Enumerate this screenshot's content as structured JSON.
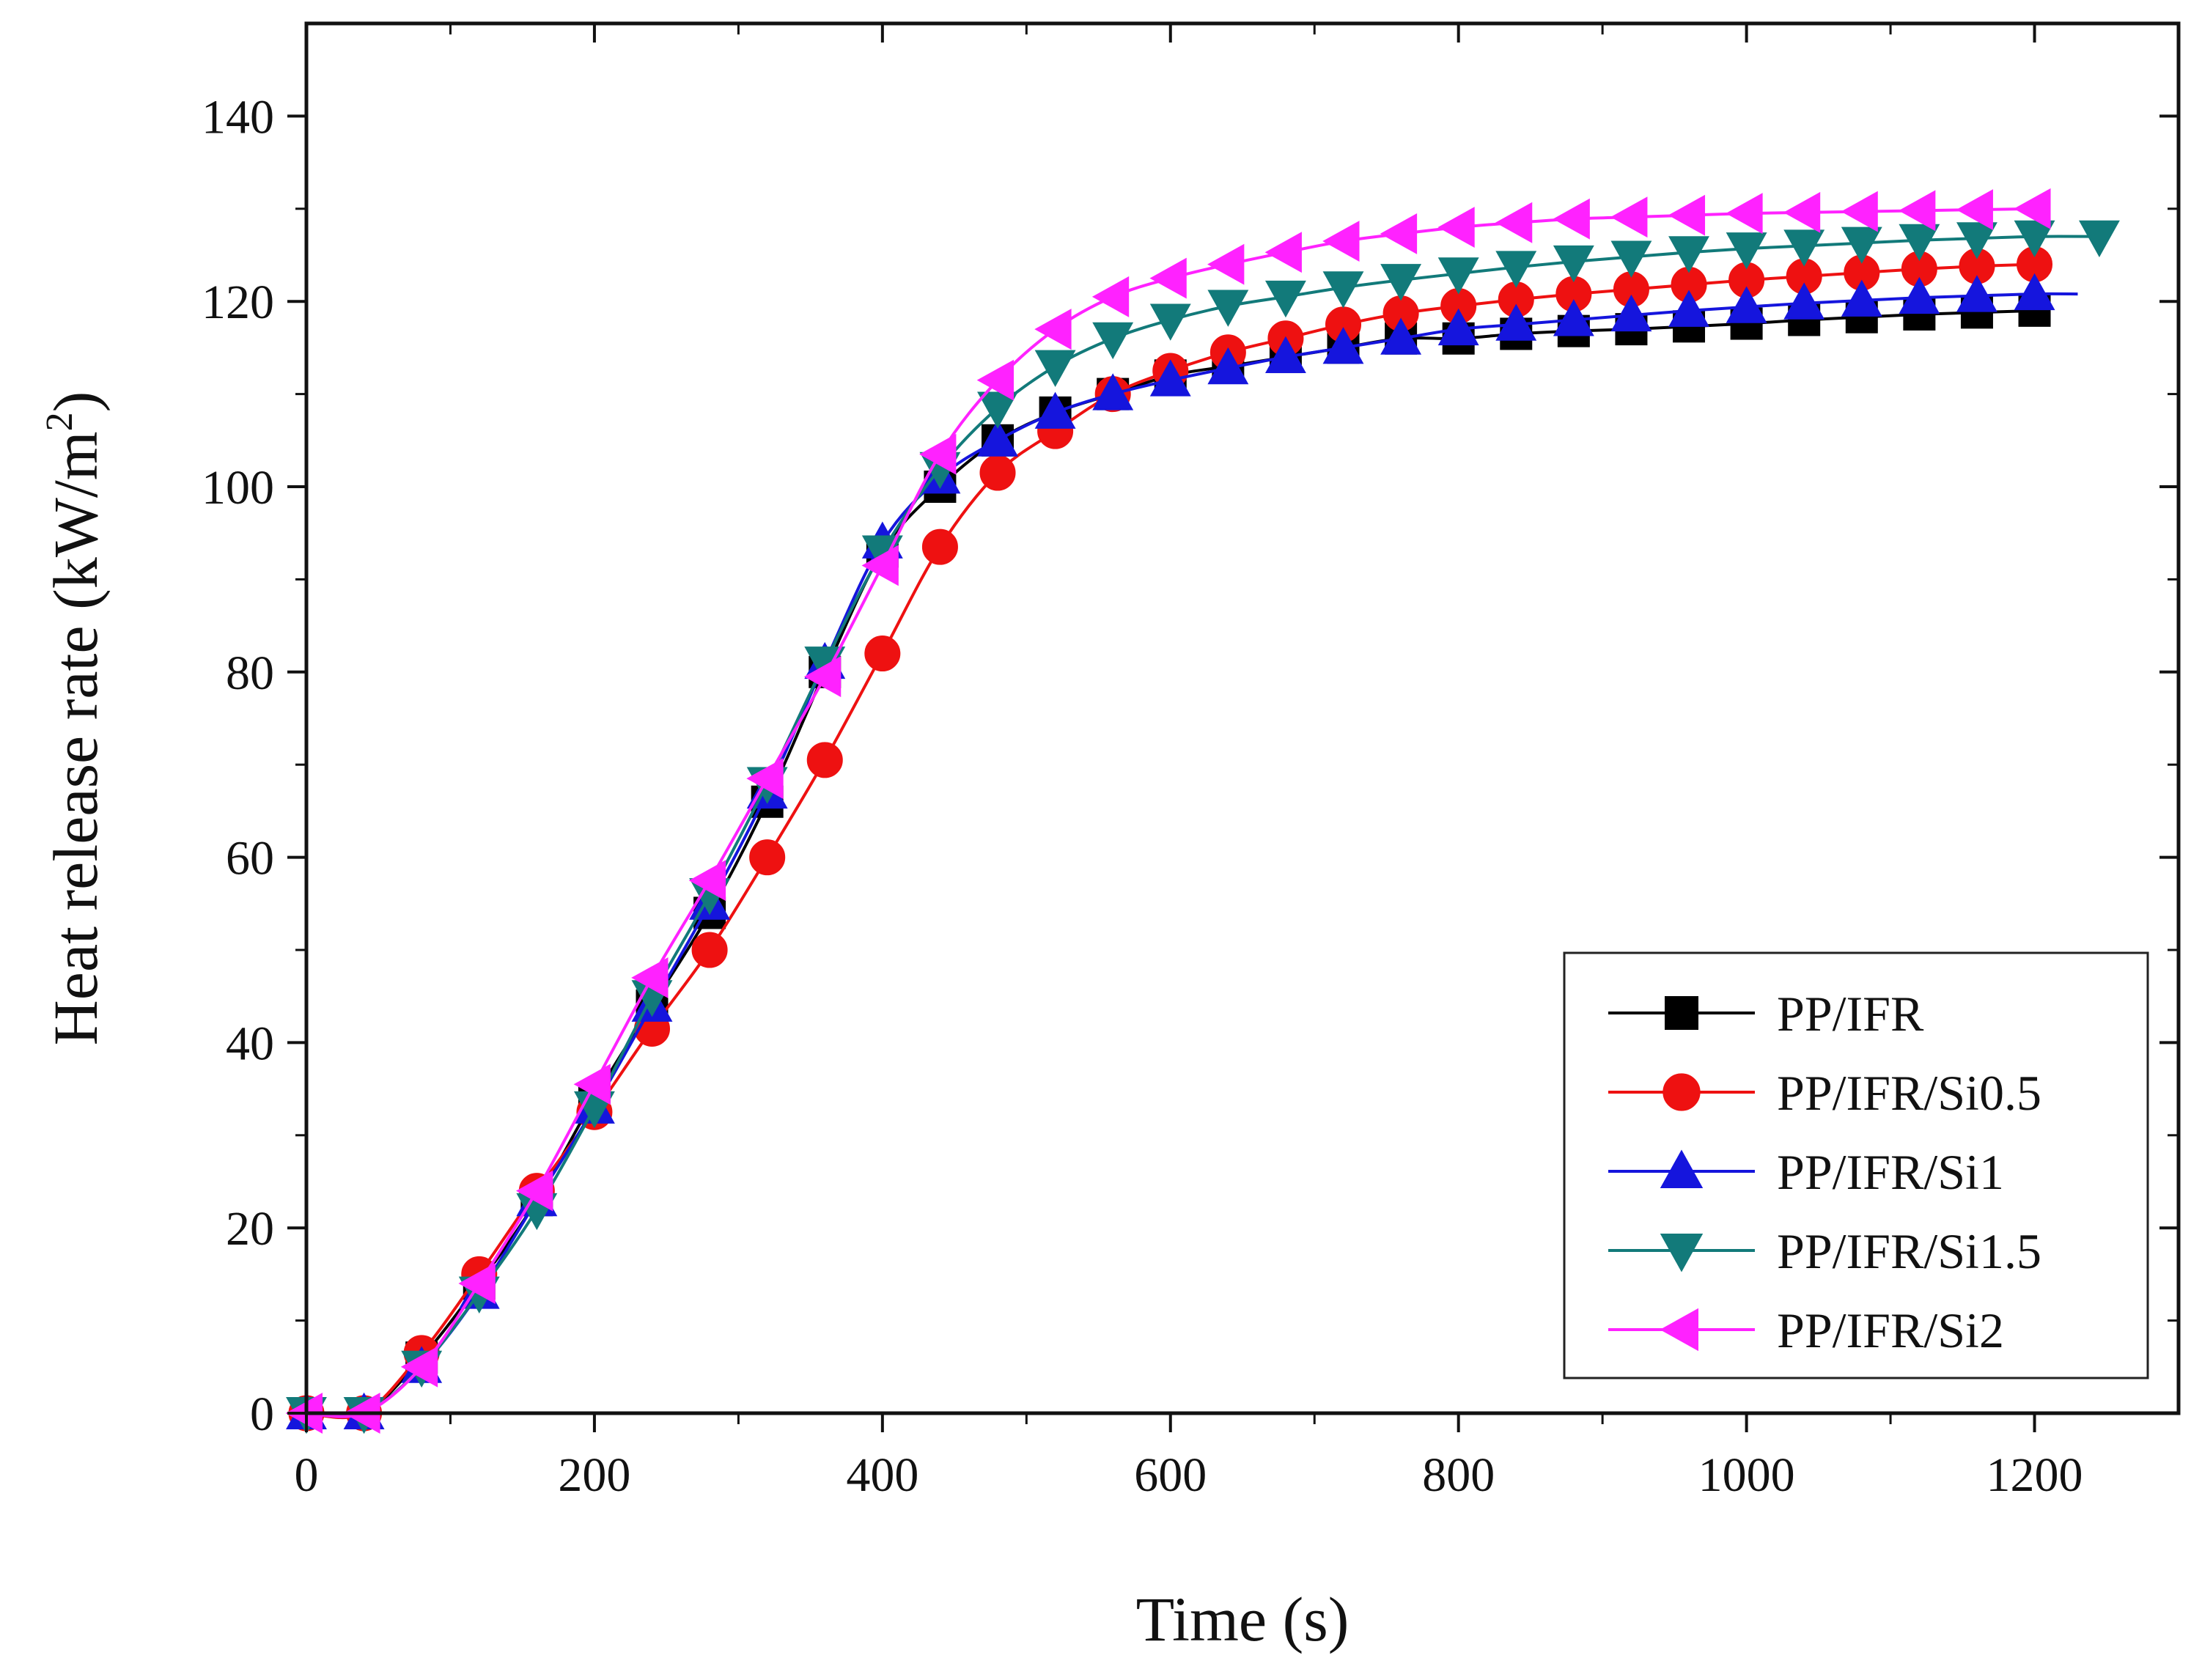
{
  "chart_data": {
    "type": "line",
    "title": "",
    "xlabel": "Time (s)",
    "ylabel_main": "Heat release rate (kW/m",
    "ylabel_sup": "2",
    "ylabel_close": ")",
    "xlim": [
      0,
      1300
    ],
    "ylim": [
      0,
      150
    ],
    "xticks": [
      0,
      200,
      400,
      600,
      800,
      1000,
      1200
    ],
    "yticks": [
      0,
      20,
      40,
      60,
      80,
      100,
      120,
      140
    ],
    "xtick_labels": [
      "0",
      "200",
      "400",
      "600",
      "800",
      "1000",
      "1200"
    ],
    "ytick_labels": [
      "0",
      "20",
      "40",
      "60",
      "80",
      "100",
      "120",
      "140"
    ],
    "grid": false,
    "legend_position": "bottom-right",
    "series": [
      {
        "name": "PP/IFR",
        "color": "#000000",
        "marker": "square",
        "line_end": 1200,
        "x": [
          0,
          40,
          80,
          120,
          160,
          200,
          240,
          280,
          320,
          360,
          400,
          440,
          480,
          520,
          560,
          600,
          640,
          680,
          720,
          760,
          800,
          840,
          880,
          920,
          960,
          1000,
          1040,
          1080,
          1120,
          1160,
          1200
        ],
        "y": [
          0,
          0,
          6,
          14,
          23,
          34,
          44,
          54,
          66,
          80,
          93,
          100,
          105,
          108,
          110,
          112,
          113,
          114,
          115,
          116,
          116,
          116.5,
          116.8,
          117,
          117.3,
          117.6,
          118,
          118.3,
          118.6,
          118.8,
          119
        ]
      },
      {
        "name": "PP/IFR/Si0.5",
        "color": "#ee1111",
        "marker": "circle",
        "line_end": 1200,
        "x": [
          0,
          40,
          80,
          120,
          160,
          200,
          240,
          280,
          320,
          360,
          400,
          440,
          480,
          520,
          560,
          600,
          640,
          680,
          720,
          760,
          800,
          840,
          880,
          920,
          960,
          1000,
          1040,
          1080,
          1120,
          1160,
          1200
        ],
        "y": [
          0,
          0,
          6.5,
          15,
          24,
          32.5,
          41.5,
          50,
          60,
          70.5,
          82,
          93.5,
          101.5,
          106,
          110,
          112.5,
          114.5,
          116,
          117.5,
          118.7,
          119.5,
          120.2,
          120.8,
          121.3,
          121.8,
          122.3,
          122.7,
          123.1,
          123.5,
          123.8,
          124
        ]
      },
      {
        "name": "PP/IFR/Si1",
        "color": "#1515dd",
        "marker": "triangle-up",
        "line_end": 1230,
        "x": [
          0,
          40,
          80,
          120,
          160,
          200,
          240,
          280,
          320,
          360,
          400,
          440,
          480,
          520,
          560,
          600,
          640,
          680,
          720,
          760,
          800,
          840,
          880,
          920,
          960,
          1000,
          1040,
          1080,
          1120,
          1160,
          1200
        ],
        "y": [
          0,
          0,
          5,
          13,
          23,
          33,
          44,
          55,
          67,
          81,
          94,
          101,
          105,
          108,
          110,
          111.5,
          112.8,
          114,
          115,
          116,
          117,
          117.5,
          118,
          118.5,
          119,
          119.4,
          119.8,
          120.1,
          120.4,
          120.6,
          120.8
        ]
      },
      {
        "name": "PP/IFR/Si1.5",
        "color": "#127a7a",
        "marker": "triangle-down",
        "line_end": 1245,
        "x": [
          0,
          40,
          80,
          120,
          160,
          200,
          240,
          280,
          320,
          360,
          400,
          440,
          480,
          520,
          560,
          600,
          640,
          680,
          720,
          760,
          800,
          840,
          880,
          920,
          960,
          1000,
          1040,
          1080,
          1120,
          1160,
          1200,
          1245
        ],
        "y": [
          0,
          0,
          5,
          13,
          22,
          33,
          45,
          56,
          68,
          81,
          93,
          102,
          108.5,
          113,
          116,
          118,
          119.5,
          120.5,
          121.5,
          122.3,
          123,
          123.7,
          124.3,
          124.8,
          125.3,
          125.7,
          126,
          126.3,
          126.6,
          126.8,
          127,
          127
        ]
      },
      {
        "name": "PP/IFR/Si2",
        "color": "#ff22ff",
        "marker": "triangle-left",
        "line_end": 1200,
        "x": [
          0,
          40,
          80,
          120,
          160,
          200,
          240,
          280,
          320,
          360,
          400,
          440,
          480,
          520,
          560,
          600,
          640,
          680,
          720,
          760,
          800,
          840,
          880,
          920,
          960,
          1000,
          1040,
          1080,
          1120,
          1160,
          1200
        ],
        "y": [
          0,
          0,
          5,
          14,
          24,
          35.5,
          47,
          57.5,
          68.5,
          79.5,
          91.5,
          103.5,
          111.5,
          117,
          120.5,
          122.5,
          124,
          125.3,
          126.5,
          127.3,
          128,
          128.5,
          128.9,
          129.1,
          129.3,
          129.5,
          129.6,
          129.7,
          129.8,
          129.9,
          130
        ]
      }
    ]
  }
}
